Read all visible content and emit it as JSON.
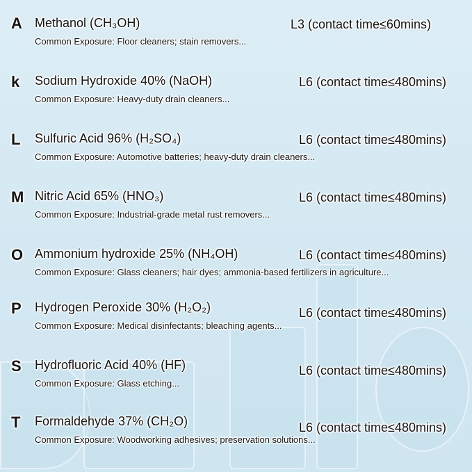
{
  "rows": [
    {
      "letter": "A",
      "name": "Methanol (CH₃OH)",
      "level": "L3 (contact time≤60mins)",
      "exposure": "Common Exposure: Floor cleaners; stain removers..."
    },
    {
      "letter": "k",
      "name": "Sodium Hydroxide 40% (NaOH)",
      "level": "L6 (contact time≤480mins)",
      "exposure": "Common Exposure: Heavy-duty drain cleaners..."
    },
    {
      "letter": "L",
      "name": "Sulfuric Acid 96% (H₂SO₄)",
      "level": "L6 (contact time≤480mins)",
      "exposure": "Common Exposure: Automotive batteries; heavy-duty drain cleaners..."
    },
    {
      "letter": "M",
      "name": "Nitric Acid 65% (HNO₃)",
      "level": "L6 (contact time≤480mins)",
      "exposure": "Common Exposure: Industrial-grade metal rust removers..."
    },
    {
      "letter": "O",
      "name": "Ammonium hydroxide 25% (NH₄OH)",
      "level": "L6 (contact time≤480mins)",
      "exposure": "Common Exposure: Glass cleaners; hair dyes; ammonia-based fertilizers in agriculture..."
    },
    {
      "letter": "P",
      "name": "Hydrogen Peroxide 30% (H₂O₂)",
      "level": "L6 (contact time≤480mins)",
      "exposure": "Common Exposure: Medical disinfectants; bleaching agents..."
    },
    {
      "letter": "S",
      "name": "Hydrofluoric Acid 40% (HF)",
      "level": "L6 (contact time≤480mins)",
      "exposure": "Common Exposure: Glass etching..."
    },
    {
      "letter": "T",
      "name": "Formaldehyde 37% (CH₂O)",
      "level": "L6 (contact time≤480mins)",
      "exposure": "Common Exposure: Woodworking adhesives; preservation solutions..."
    }
  ]
}
